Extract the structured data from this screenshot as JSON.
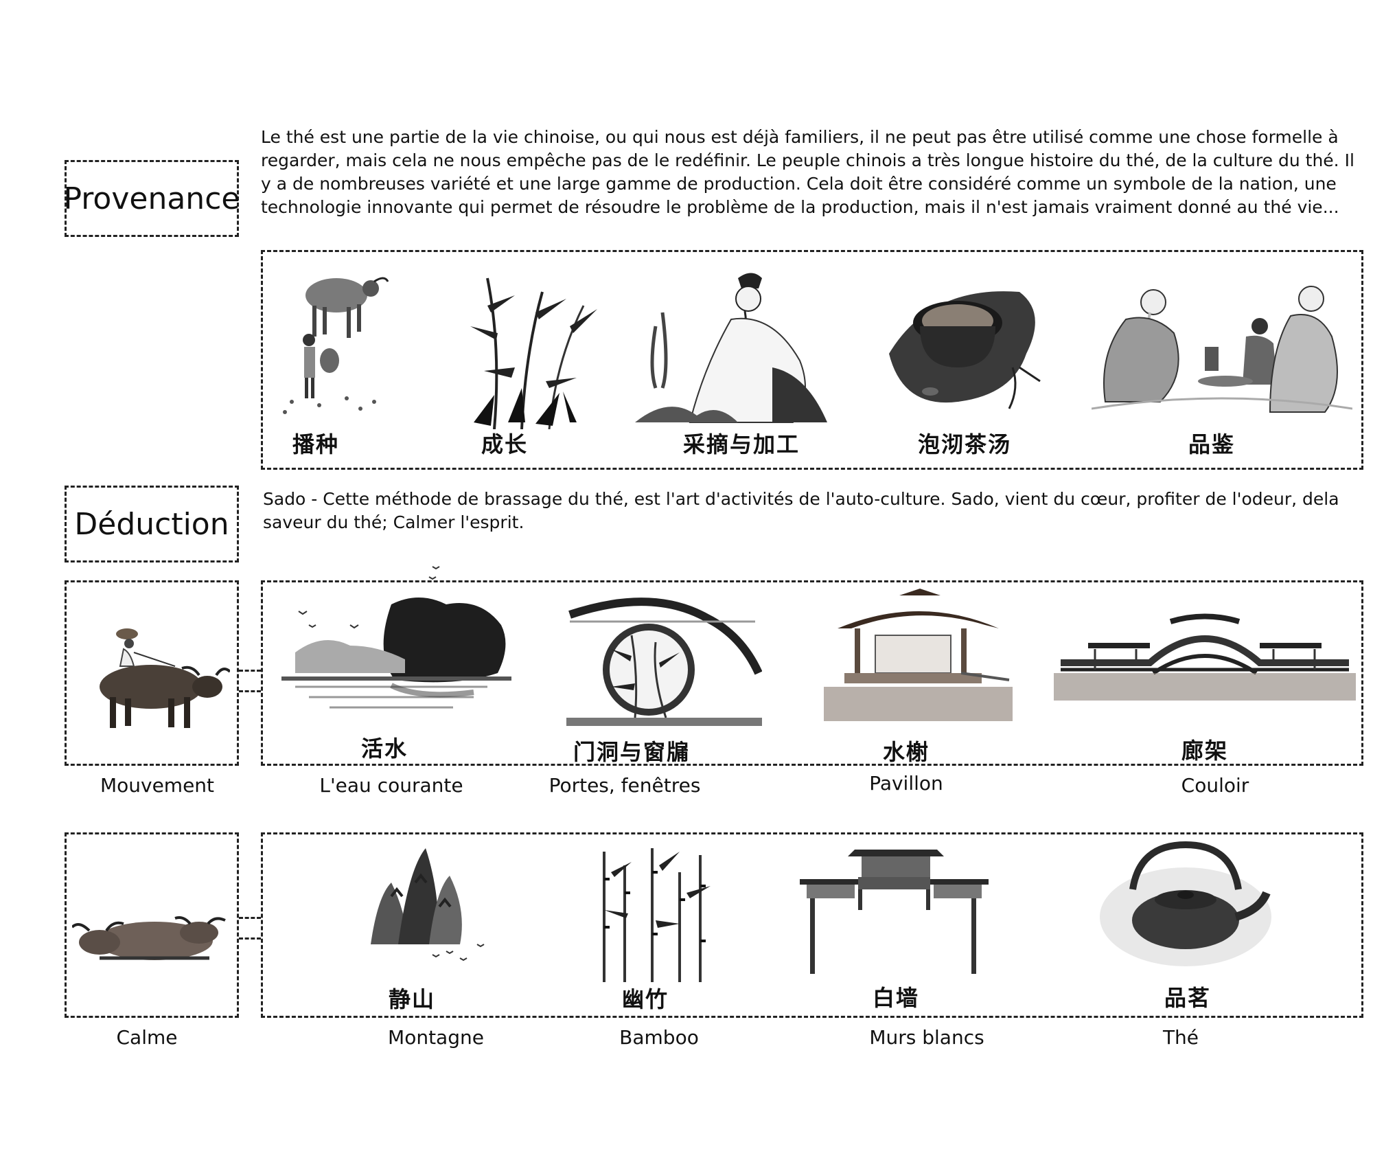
{
  "provenance": {
    "heading": "Provenance",
    "text": "Le thé est une partie de la vie chinoise, ou qui nous est déjà familiers, il ne peut pas être utilisé comme une chose formelle à regarder, mais cela ne nous empêche pas de le redéfinir. Le peuple chinois a très longue histoire du thé, de la culture du thé. Il y a de nombreuses variété et une large gamme de production. Cela doit être considéré comme un symbole de la nation, une technologie innovante qui permet de résoudre le problème de la production, mais il n'est jamais vraiment donné au thé vie...",
    "stages": [
      {
        "cn": "播种",
        "icon": "sowing-ox-boy-icon"
      },
      {
        "cn": "成长",
        "icon": "bamboo-growth-icon"
      },
      {
        "cn": "采摘与加工",
        "icon": "scholar-picking-icon"
      },
      {
        "cn": "泡沏茶汤",
        "icon": "tea-cup-icon"
      },
      {
        "cn": "品鉴",
        "icon": "elders-tasting-icon"
      }
    ]
  },
  "deduction": {
    "heading": "Déduction",
    "text": "Sado - Cette méthode de brassage du thé, est l'art d'activités de l'auto-culture. Sado, vient du cœur, profiter de l'odeur,  dela saveur du thé; Calmer l'esprit."
  },
  "mouvement": {
    "label": "Mouvement",
    "items": [
      {
        "cn": "活水",
        "caption": "L'eau courante",
        "icon": "landscape-water-icon"
      },
      {
        "cn": "门洞与窗牖",
        "caption": "Portes, fenêtres",
        "icon": "moon-gate-icon"
      },
      {
        "cn": "水榭",
        "caption": "Pavillon",
        "icon": "pavilion-icon"
      },
      {
        "cn": "廊架",
        "caption": "Couloir",
        "icon": "arched-bridge-icon"
      }
    ]
  },
  "calme": {
    "label": "Calme",
    "items": [
      {
        "cn": "静山",
        "caption": "Montagne",
        "icon": "mountain-ink-icon"
      },
      {
        "cn": "幽竹",
        "caption": "Bamboo",
        "icon": "bamboo-grove-icon"
      },
      {
        "cn": "白墙",
        "caption": "Murs blancs",
        "icon": "archway-gate-icon"
      },
      {
        "cn": "品茗",
        "caption": "Thé",
        "icon": "teapot-icon"
      }
    ]
  }
}
